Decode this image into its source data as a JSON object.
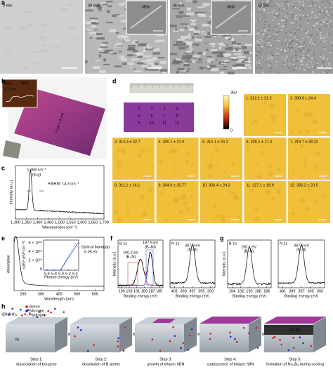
{
  "panel_labels": [
    "a",
    "b",
    "c",
    "d",
    "e",
    "f",
    "g",
    "h"
  ],
  "a": {
    "times": [
      "0 min",
      "30 min",
      "45 min",
      "60 min"
    ],
    "insets": [
      "hBN",
      "hBN"
    ]
  },
  "b": {
    "inset": [
      "SiO₂",
      "hBN",
      "1.2 nm"
    ],
    "size": "2 cm × 5 cm"
  },
  "c": {
    "peak": "1,368 cm⁻¹",
    "mode": "(E₂g)",
    "fwhm": "FWHM: 14.3 cm⁻¹",
    "ylabel": "Intensity (a.u.)",
    "xlabel": "Wavenumber (cm⁻¹)",
    "xticks": [
      "1,300",
      "1,350",
      "1,400",
      "1,450",
      "1,500",
      "1,550",
      "1,600",
      "1,650",
      "1,700"
    ]
  },
  "d": {
    "colorbar": [
      "350",
      "0"
    ],
    "map_numbers": [
      "1",
      "2",
      "3",
      "4",
      "5",
      "6",
      "7",
      "8",
      "9",
      "10",
      "11",
      "12"
    ],
    "tiles": [
      "1. 312.1 ± 21.2",
      "2. 308.9 ± 24.4",
      "3. 314.4 ± 22.7",
      "4. 300.1 ± 21.9",
      "5. 315.1 ± 24.2",
      "6. 326.1 ± 17.3",
      "7. 319.7 ± 28.22",
      "8. 311.1 ± 14.1",
      "9. 304.9 ± 25.77",
      "10. 326.4 ± 24.2",
      "11. 327.1 ± 18.9",
      "12. 326.2 ± 20.5"
    ]
  },
  "e": {
    "ylabel": "Absorption",
    "xlabel": "Wavelength (nm)",
    "xticks": [
      "200",
      "300",
      "400",
      "500",
      "600"
    ],
    "inset": {
      "ylabel": "(αE)² (eV² cm⁻²)",
      "yticks": [
        "6 × 10¹⁰",
        "4 × 10¹⁰",
        "2 × 10¹⁰",
        "0"
      ],
      "xticks": [
        "5.6",
        "5.8",
        "6.0",
        "6.2",
        "6.4"
      ],
      "xlabel": "Photon energy (eV)",
      "note": [
        "Optical bandgap:",
        "6.05 eV"
      ]
    }
  },
  "f": {
    "ylabel": "Intensity (a.u.)",
    "left": {
      "title": "B 1s",
      "peaks": [
        "190.2 eV",
        "(B–N)",
        "187.9 eV",
        "(B–Ni)"
      ],
      "xticks": [
        "195",
        "193",
        "191",
        "189",
        "187",
        "185"
      ],
      "xlabel": "Binding energy (eV)"
    },
    "right": {
      "title": "N 1s",
      "peaks": [
        "397.9 eV",
        "(N–B)"
      ],
      "xticks": [
        "401",
        "399",
        "397",
        "395",
        "393"
      ],
      "xlabel": "Binding energy (eV)"
    }
  },
  "g": {
    "ylabel": "Intensity (a.u.)",
    "left": {
      "title": "B 1s",
      "peaks": [
        "190.1 eV",
        "(B–N)"
      ],
      "xticks": [
        "194",
        "192",
        "190",
        "188",
        "186"
      ],
      "xlabel": "Binding energy (eV)"
    },
    "right": {
      "title": "N 1s",
      "peaks": [
        "397.9 eV",
        "(N–B)"
      ],
      "xticks": [
        "401",
        "399",
        "397",
        "395",
        "393"
      ],
      "xlabel": "Binding energy (eV)"
    }
  },
  "h": {
    "legend": [
      "Boron",
      "Nitrogen",
      "Hydrogen"
    ],
    "precursor": "(BHNH)₃",
    "substrate": "Ni",
    "boride": "Ni₂₃B₆",
    "steps": [
      [
        "Step 1:",
        "dissociation of borazine"
      ],
      [
        "Step 2:",
        "dissolution of B atoms"
      ],
      [
        "Step 3:",
        "growth of trilayer hBN"
      ],
      [
        "Step 4:",
        "coalescence of trilayer hBN"
      ],
      [
        "Step 5:",
        "formation of Ni₂₃B₆ during cooling"
      ]
    ]
  }
}
